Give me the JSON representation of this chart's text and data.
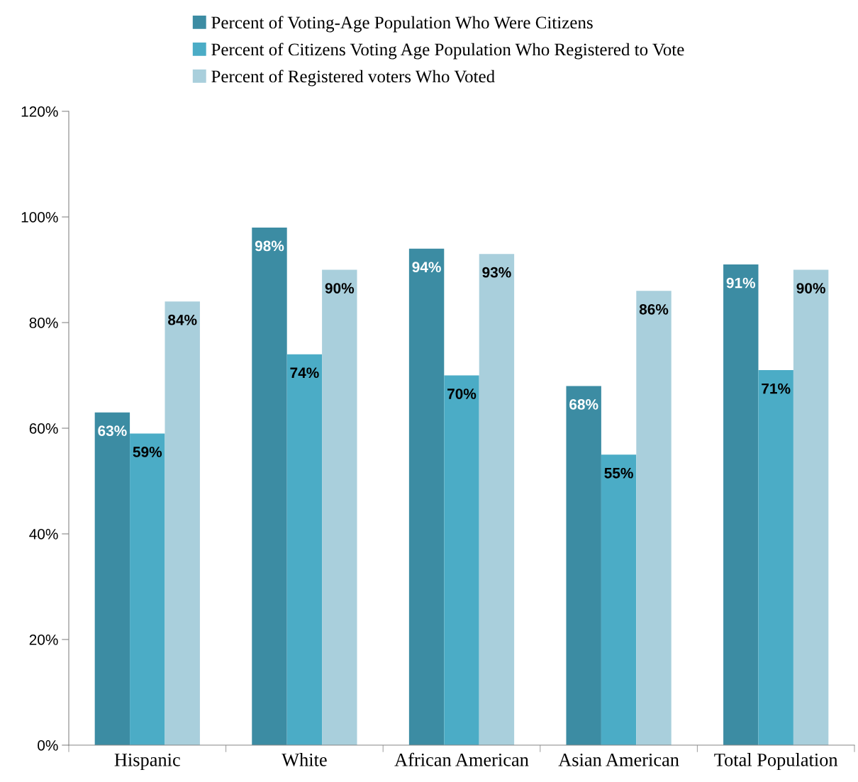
{
  "chart_data": {
    "type": "bar",
    "categories": [
      "Hispanic",
      "White",
      "African American",
      "Asian American",
      "Total Population"
    ],
    "series": [
      {
        "name": "Percent of Voting-Age Population Who Were Citizens",
        "color": "#3c8ca3",
        "values": [
          63,
          98,
          94,
          68,
          91
        ],
        "value_labels": [
          "63%",
          "98%",
          "94%",
          "68%",
          "91%"
        ]
      },
      {
        "name": "Percent of Citizens Voting Age Population Who Registered to Vote",
        "color": "#4bacc6",
        "values": [
          59,
          74,
          70,
          55,
          71
        ],
        "value_labels": [
          "59%",
          "74%",
          "70%",
          "55%",
          "71%"
        ]
      },
      {
        "name": "Percent of Registered voters Who Voted",
        "color": "#a9cfdc",
        "values": [
          84,
          90,
          93,
          86,
          90
        ],
        "value_labels": [
          "84%",
          "90%",
          "93%",
          "86%",
          "90%"
        ]
      }
    ],
    "ylim": [
      0,
      120
    ],
    "yticks": [
      {
        "value": 0,
        "label": "0%"
      },
      {
        "value": 20,
        "label": "20%"
      },
      {
        "value": 40,
        "label": "40%"
      },
      {
        "value": 60,
        "label": "60%"
      },
      {
        "value": 80,
        "label": "80%"
      },
      {
        "value": 100,
        "label": "100%"
      },
      {
        "value": 120,
        "label": "120%"
      }
    ],
    "grid": false,
    "legend": "top"
  }
}
